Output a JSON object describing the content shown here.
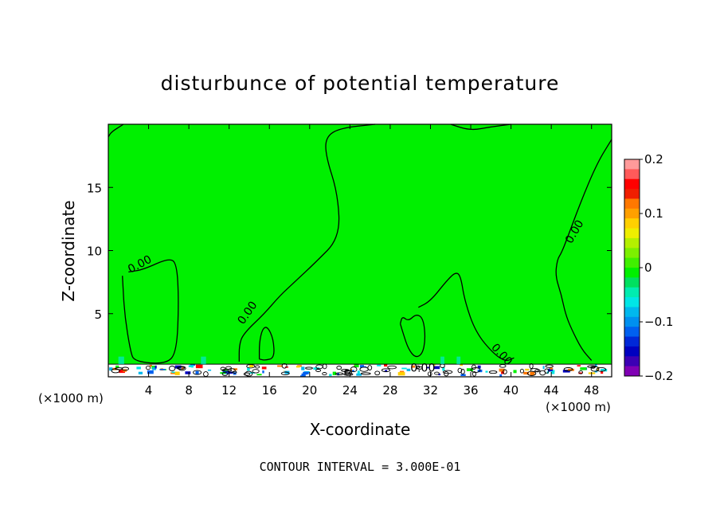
{
  "chart_data": {
    "type": "heatmap",
    "title": "disturbunce of potential temperature",
    "xlabel": "X-coordinate",
    "ylabel": "Z-coordinate",
    "x_unit_left": "(×1000 m)",
    "x_unit_right": "(×1000 m)",
    "xlim": [
      0,
      50
    ],
    "ylim": [
      0,
      20
    ],
    "x_ticks": [
      "4",
      "8",
      "12",
      "16",
      "20",
      "24",
      "28",
      "32",
      "36",
      "40",
      "44",
      "48"
    ],
    "x_tick_values": [
      4,
      8,
      12,
      16,
      20,
      24,
      28,
      32,
      36,
      40,
      44,
      48
    ],
    "y_ticks": [
      "5",
      "10",
      "15"
    ],
    "y_tick_values": [
      5,
      10,
      15
    ],
    "contour_labels": [
      "0.00",
      "0.00",
      "0.00",
      "0.00",
      "0.00"
    ],
    "field_value_upper": 0.0,
    "surface_layer_depth": 1.0,
    "zero_contours": [
      {
        "points": [
          [
            1.5,
            20
          ],
          [
            0.3,
            19.4
          ],
          [
            0,
            19
          ]
        ]
      },
      {
        "points": [
          [
            1.4,
            8
          ],
          [
            1.6,
            5
          ],
          [
            2.2,
            2
          ],
          [
            2.6,
            1.2
          ],
          [
            5.8,
            1.0
          ],
          [
            6.8,
            2
          ],
          [
            7.0,
            6
          ],
          [
            6.8,
            9
          ],
          [
            6.0,
            9.4
          ],
          [
            3.5,
            8.5
          ],
          [
            2.0,
            8.3
          ]
        ]
      },
      {
        "points": [
          [
            13.0,
            1.2
          ],
          [
            13.0,
            2.5
          ],
          [
            13.4,
            3.4
          ],
          [
            15.5,
            5.0
          ],
          [
            17.0,
            6.4
          ],
          [
            18.5,
            7.5
          ],
          [
            20.5,
            9.0
          ],
          [
            23.0,
            11.0
          ],
          [
            22.8,
            14.5
          ],
          [
            21.6,
            17.5
          ],
          [
            21.6,
            19.0
          ],
          [
            23.0,
            19.7
          ],
          [
            26.5,
            20.0
          ]
        ]
      },
      {
        "points": [
          [
            15.0,
            1.4
          ],
          [
            15.0,
            2.7
          ],
          [
            15.3,
            3.8
          ],
          [
            15.8,
            4.0
          ],
          [
            16.4,
            3.0
          ],
          [
            16.5,
            1.5
          ],
          [
            15.6,
            1.3
          ],
          [
            15.0,
            1.4
          ]
        ]
      },
      {
        "points": [
          [
            29.0,
            4.2
          ],
          [
            29.2,
            4.8
          ],
          [
            29.8,
            4.4
          ],
          [
            30.6,
            5.0
          ],
          [
            31.3,
            4.6
          ],
          [
            31.5,
            3.0
          ],
          [
            31.2,
            1.8
          ],
          [
            30.5,
            1.5
          ],
          [
            29.8,
            2.2
          ],
          [
            29.3,
            3.4
          ],
          [
            29.0,
            4.2
          ]
        ]
      },
      {
        "points": [
          [
            30.8,
            5.5
          ],
          [
            32.0,
            6.0
          ],
          [
            33.6,
            7.6
          ],
          [
            34.5,
            8.3
          ],
          [
            35.0,
            8.0
          ],
          [
            35.4,
            6.0
          ],
          [
            36.5,
            3.5
          ],
          [
            38.3,
            1.8
          ],
          [
            39.5,
            1.2
          ],
          [
            40.3,
            1.5
          ]
        ]
      },
      {
        "points": [
          [
            34.0,
            20.0
          ],
          [
            36.0,
            19.5
          ],
          [
            38.0,
            19.8
          ],
          [
            40.0,
            20.0
          ]
        ]
      },
      {
        "points": [
          [
            50.0,
            18.8
          ],
          [
            48.6,
            17.0
          ],
          [
            47.0,
            14.0
          ],
          [
            45.6,
            11.0
          ],
          [
            45.0,
            9.8
          ],
          [
            44.6,
            9.3
          ],
          [
            44.4,
            8.0
          ],
          [
            45.0,
            6.5
          ],
          [
            45.4,
            5.0
          ],
          [
            46.0,
            3.8
          ],
          [
            47.0,
            2.2
          ],
          [
            48.0,
            1.3
          ]
        ]
      }
    ],
    "colorbar": {
      "min": -0.2,
      "max": 0.2,
      "tick_labels": [
        "0.2",
        "0.1",
        "0",
        "−0.1",
        "−0.2"
      ],
      "tick_values": [
        0.2,
        0.1,
        0,
        -0.1,
        -0.2
      ],
      "colors": [
        "#ff9a9a",
        "#ff5a5a",
        "#ff0000",
        "#f01e00",
        "#ff7800",
        "#ffa000",
        "#ffd000",
        "#eeee00",
        "#b4f000",
        "#7cf000",
        "#40f000",
        "#00f000",
        "#00e060",
        "#00ecb0",
        "#00e6e6",
        "#00b8ee",
        "#0090f0",
        "#0060f0",
        "#0028d8",
        "#0000c0",
        "#3c00b4",
        "#8000b4"
      ]
    },
    "colors": {
      "background": "#ffffff",
      "field": "#00f000",
      "contour": "#000000"
    },
    "grid": false,
    "legend": "right colorbar"
  },
  "footer": {
    "note": "CONTOUR INTERVAL = 3.000E-01"
  }
}
